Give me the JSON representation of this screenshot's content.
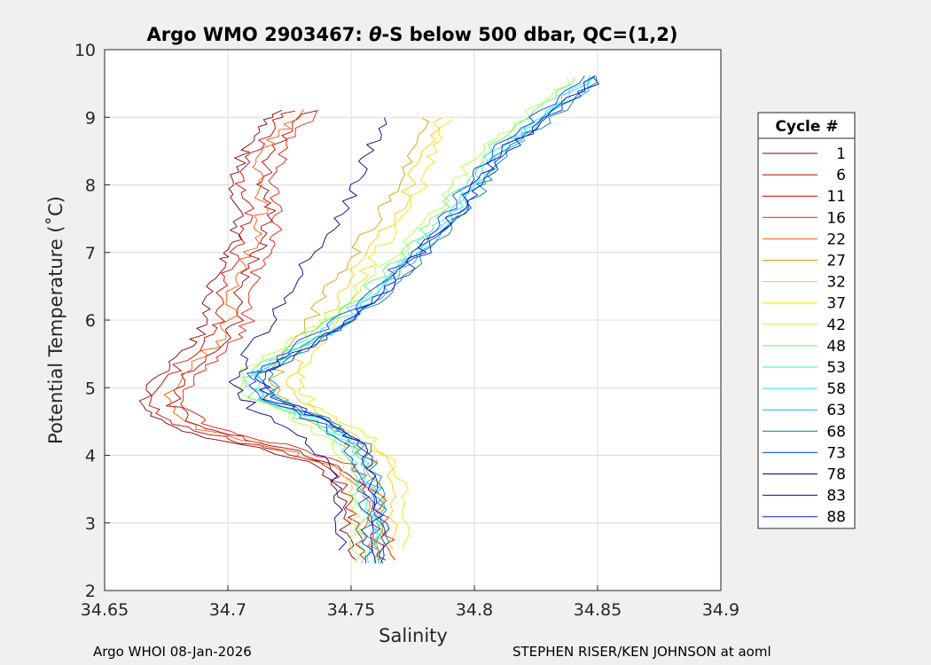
{
  "chart_data": {
    "type": "line",
    "title_prefix": "Argo WMO 2903467: ",
    "title_theta": "θ",
    "title_suffix": "-S below 500 dbar,  QC=(1,2)",
    "xlabel": "Salinity",
    "ylabel": "Potential Temperature (˚C)",
    "xlim": [
      34.65,
      34.9
    ],
    "ylim": [
      2,
      10
    ],
    "xticks": [
      34.65,
      34.7,
      34.75,
      34.8,
      34.85,
      34.9
    ],
    "xtick_labels": [
      "34.65",
      "34.7",
      "34.75",
      "34.8",
      "34.85",
      "34.9"
    ],
    "yticks": [
      2,
      3,
      4,
      5,
      6,
      7,
      8,
      9,
      10
    ],
    "ytick_labels": [
      "2",
      "3",
      "4",
      "5",
      "6",
      "7",
      "8",
      "9",
      "10"
    ],
    "grid": true,
    "legend": {
      "title": "Cycle #",
      "placement": "right",
      "entries": [
        {
          "label": "1",
          "color": "#800000"
        },
        {
          "label": "6",
          "color": "#a00000"
        },
        {
          "label": "11",
          "color": "#cc0000"
        },
        {
          "label": "16",
          "color": "#ee1a00"
        },
        {
          "label": "22",
          "color": "#ff5500"
        },
        {
          "label": "27",
          "color": "#d4a000"
        },
        {
          "label": "32",
          "color": "#ffcc00"
        },
        {
          "label": "37",
          "color": "#e8e800"
        },
        {
          "label": "42",
          "color": "#b0ff40"
        },
        {
          "label": "48",
          "color": "#50ff60"
        },
        {
          "label": "53",
          "color": "#30f0c0"
        },
        {
          "label": "58",
          "color": "#20e0ee"
        },
        {
          "label": "63",
          "color": "#00b8d8"
        },
        {
          "label": "68",
          "color": "#007f90"
        },
        {
          "label": "73",
          "color": "#0040ff"
        },
        {
          "label": "78",
          "color": "#0000c0"
        },
        {
          "label": "83",
          "color": "#000080"
        },
        {
          "label": "88",
          "color": "#0020e0"
        }
      ]
    },
    "series_templates": {
      "early": [
        [
          34.722,
          9.1
        ],
        [
          34.712,
          8.8
        ],
        [
          34.705,
          8.4
        ],
        [
          34.702,
          8.0
        ],
        [
          34.705,
          7.6
        ],
        [
          34.703,
          7.2
        ],
        [
          34.698,
          6.9
        ],
        [
          34.693,
          6.5
        ],
        [
          34.692,
          6.0
        ],
        [
          34.685,
          5.6
        ],
        [
          34.672,
          5.2
        ],
        [
          34.665,
          4.75
        ],
        [
          34.678,
          4.4
        ],
        [
          34.708,
          4.15
        ],
        [
          34.735,
          3.85
        ],
        [
          34.745,
          3.4
        ],
        [
          34.748,
          2.9
        ],
        [
          34.752,
          2.45
        ]
      ],
      "mid": [
        [
          34.775,
          9.0
        ],
        [
          34.768,
          8.5
        ],
        [
          34.762,
          8.0
        ],
        [
          34.755,
          7.5
        ],
        [
          34.745,
          7.0
        ],
        [
          34.735,
          6.5
        ],
        [
          34.728,
          6.0
        ],
        [
          34.718,
          5.5
        ],
        [
          34.712,
          5.1
        ],
        [
          34.72,
          4.7
        ],
        [
          34.74,
          4.3
        ],
        [
          34.752,
          3.9
        ],
        [
          34.756,
          3.3
        ],
        [
          34.755,
          2.6
        ]
      ],
      "late": [
        [
          34.848,
          9.6
        ],
        [
          34.828,
          9.0
        ],
        [
          34.81,
          8.5
        ],
        [
          34.8,
          8.0
        ],
        [
          34.79,
          7.5
        ],
        [
          34.777,
          7.0
        ],
        [
          34.763,
          6.5
        ],
        [
          34.748,
          6.0
        ],
        [
          34.73,
          5.6
        ],
        [
          34.712,
          5.2
        ],
        [
          34.716,
          4.85
        ],
        [
          34.738,
          4.5
        ],
        [
          34.752,
          4.15
        ],
        [
          34.757,
          3.6
        ],
        [
          34.76,
          3.0
        ],
        [
          34.759,
          2.4
        ]
      ]
    },
    "series": [
      {
        "name": "1",
        "template": "early",
        "ds": 0.0
      },
      {
        "name": "6",
        "template": "early",
        "ds": 0.012
      },
      {
        "name": "11",
        "template": "early",
        "ds": 0.004
      },
      {
        "name": "16",
        "template": "early",
        "ds": 0.016
      },
      {
        "name": "22",
        "template": "early",
        "ds": 0.009
      },
      {
        "name": "27",
        "template": "mid",
        "ds": 0.006
      },
      {
        "name": "32",
        "template": "mid",
        "ds": 0.012
      },
      {
        "name": "37",
        "template": "mid",
        "ds": 0.016
      },
      {
        "name": "42",
        "template": "late",
        "ds": -0.008
      },
      {
        "name": "48",
        "template": "late",
        "ds": -0.005
      },
      {
        "name": "53",
        "template": "late",
        "ds": -0.002
      },
      {
        "name": "58",
        "template": "late",
        "ds": 0.0
      },
      {
        "name": "63",
        "template": "late",
        "ds": 0.002
      },
      {
        "name": "68",
        "template": "late",
        "ds": 0.004
      },
      {
        "name": "73",
        "template": "late",
        "ds": -0.003
      },
      {
        "name": "78",
        "template": "late",
        "ds": 0.001
      },
      {
        "name": "83",
        "template": "mid",
        "ds": -0.01
      },
      {
        "name": "88",
        "template": "late",
        "ds": 0.003
      }
    ]
  },
  "footer": {
    "left": "Argo WHOI 08-Jan-2026",
    "right": "STEPHEN RISER/KEN JOHNSON at aoml"
  }
}
